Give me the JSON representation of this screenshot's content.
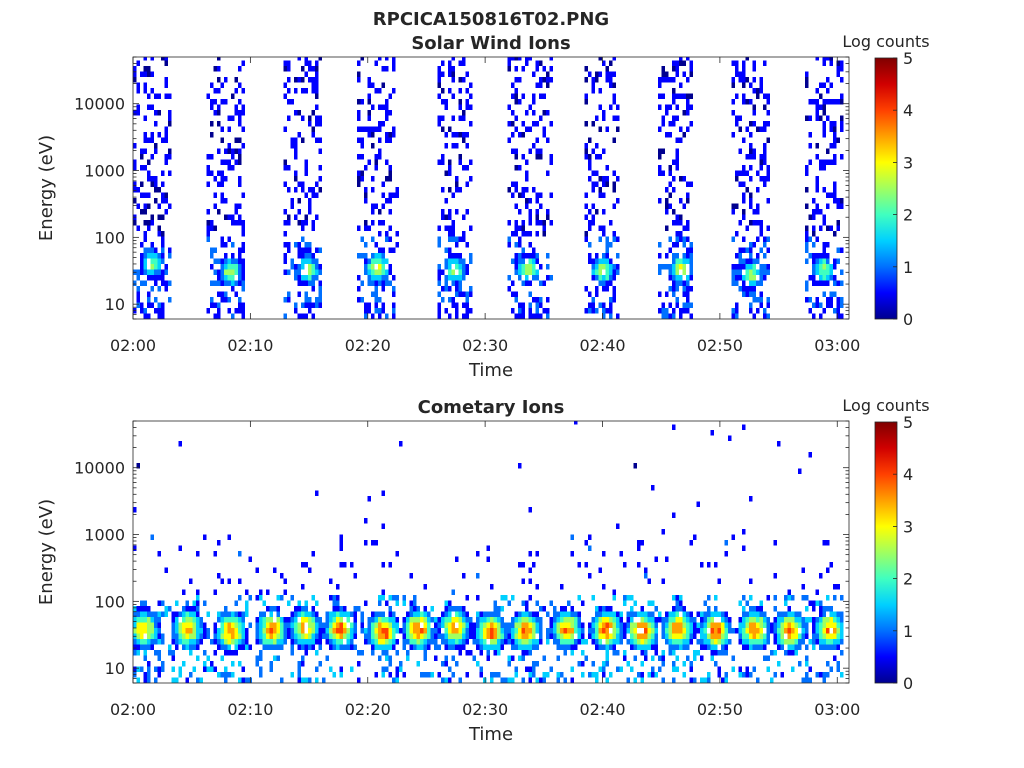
{
  "figure_title": "RPCICA150816T02.PNG",
  "colormap": [
    "#00008f",
    "#0000ff",
    "#0070ff",
    "#00d0ff",
    "#40ffc0",
    "#a0ff60",
    "#ffff00",
    "#ffa000",
    "#ff4000",
    "#d00000",
    "#800000"
  ],
  "chart_data": [
    {
      "type": "heatmap",
      "title": "Solar Wind Ions",
      "xlabel": "Time",
      "ylabel": "Energy (eV)",
      "colorbar_label": "Log counts",
      "colorbar_ticks": [
        "0",
        "1",
        "2",
        "3",
        "4",
        "5"
      ],
      "color_range": [
        0,
        5
      ],
      "x_range": [
        "02:00",
        "03:01"
      ],
      "x_ticks": [
        "02:00",
        "02:10",
        "02:20",
        "02:30",
        "02:40",
        "02:50",
        "03:00"
      ],
      "y_scale": "log",
      "y_range": [
        6,
        50000
      ],
      "y_ticks": [
        "10",
        "100",
        "1000",
        "10000"
      ],
      "y_tick_values": [
        10,
        100,
        1000,
        10000
      ],
      "grid": false,
      "scan_periods_min": [
        [
          0.0,
          3.2
        ],
        [
          6.2,
          9.5
        ],
        [
          12.8,
          16.0
        ],
        [
          19.0,
          22.5
        ],
        [
          25.7,
          28.8
        ],
        [
          31.8,
          35.5
        ],
        [
          38.2,
          41.3
        ],
        [
          44.5,
          47.7
        ],
        [
          50.8,
          54.0
        ],
        [
          57.0,
          60.5
        ]
      ],
      "scan_peaks": [
        {
          "time_min": 1.5,
          "energy_eV": 40,
          "log_counts": 2.4
        },
        {
          "time_min": 8.2,
          "energy_eV": 30,
          "log_counts": 2.6
        },
        {
          "time_min": 14.8,
          "energy_eV": 33,
          "log_counts": 2.5
        },
        {
          "time_min": 20.7,
          "energy_eV": 35,
          "log_counts": 3.1
        },
        {
          "time_min": 27.3,
          "energy_eV": 33,
          "log_counts": 2.4
        },
        {
          "time_min": 33.5,
          "energy_eV": 33,
          "log_counts": 2.6
        },
        {
          "time_min": 39.9,
          "energy_eV": 32,
          "log_counts": 2.7
        },
        {
          "time_min": 46.5,
          "energy_eV": 34,
          "log_counts": 2.8
        },
        {
          "time_min": 52.6,
          "energy_eV": 28,
          "log_counts": 2.5
        },
        {
          "time_min": 58.7,
          "energy_eV": 33,
          "log_counts": 2.5
        }
      ]
    },
    {
      "type": "heatmap",
      "title": "Cometary Ions",
      "xlabel": "Time",
      "ylabel": "Energy (eV)",
      "colorbar_label": "Log counts",
      "colorbar_ticks": [
        "0",
        "1",
        "2",
        "3",
        "4",
        "5"
      ],
      "color_range": [
        0,
        5
      ],
      "x_range": [
        "02:00",
        "03:01"
      ],
      "x_ticks": [
        "02:00",
        "02:10",
        "02:20",
        "02:30",
        "02:40",
        "02:50",
        "03:00"
      ],
      "y_scale": "log",
      "y_range": [
        6,
        50000
      ],
      "y_ticks": [
        "10",
        "100",
        "1000",
        "10000"
      ],
      "y_tick_values": [
        10,
        100,
        1000,
        10000
      ],
      "grid": false,
      "scan_periods_min": [
        [
          0.0,
          60.5
        ]
      ],
      "scan_peaks": [
        {
          "time_min": 0.8,
          "energy_eV": 38,
          "log_counts": 3.4
        },
        {
          "time_min": 4.5,
          "energy_eV": 38,
          "log_counts": 3.5
        },
        {
          "time_min": 8.2,
          "energy_eV": 35,
          "log_counts": 3.7
        },
        {
          "time_min": 11.7,
          "energy_eV": 38,
          "log_counts": 3.8
        },
        {
          "time_min": 14.5,
          "energy_eV": 40,
          "log_counts": 3.5
        },
        {
          "time_min": 17.5,
          "energy_eV": 38,
          "log_counts": 3.9
        },
        {
          "time_min": 21.2,
          "energy_eV": 35,
          "log_counts": 4.1
        },
        {
          "time_min": 24.2,
          "energy_eV": 38,
          "log_counts": 4.0
        },
        {
          "time_min": 27.3,
          "energy_eV": 40,
          "log_counts": 3.6
        },
        {
          "time_min": 30.3,
          "energy_eV": 35,
          "log_counts": 4.0
        },
        {
          "time_min": 33.3,
          "energy_eV": 36,
          "log_counts": 3.9
        },
        {
          "time_min": 36.8,
          "energy_eV": 38,
          "log_counts": 3.6
        },
        {
          "time_min": 40.2,
          "energy_eV": 38,
          "log_counts": 4.0
        },
        {
          "time_min": 43.2,
          "energy_eV": 36,
          "log_counts": 4.1
        },
        {
          "time_min": 46.3,
          "energy_eV": 38,
          "log_counts": 3.8
        },
        {
          "time_min": 49.5,
          "energy_eV": 36,
          "log_counts": 4.0
        },
        {
          "time_min": 52.8,
          "energy_eV": 38,
          "log_counts": 3.8
        },
        {
          "time_min": 55.8,
          "energy_eV": 36,
          "log_counts": 3.9
        },
        {
          "time_min": 59.2,
          "energy_eV": 38,
          "log_counts": 3.7
        }
      ]
    }
  ]
}
